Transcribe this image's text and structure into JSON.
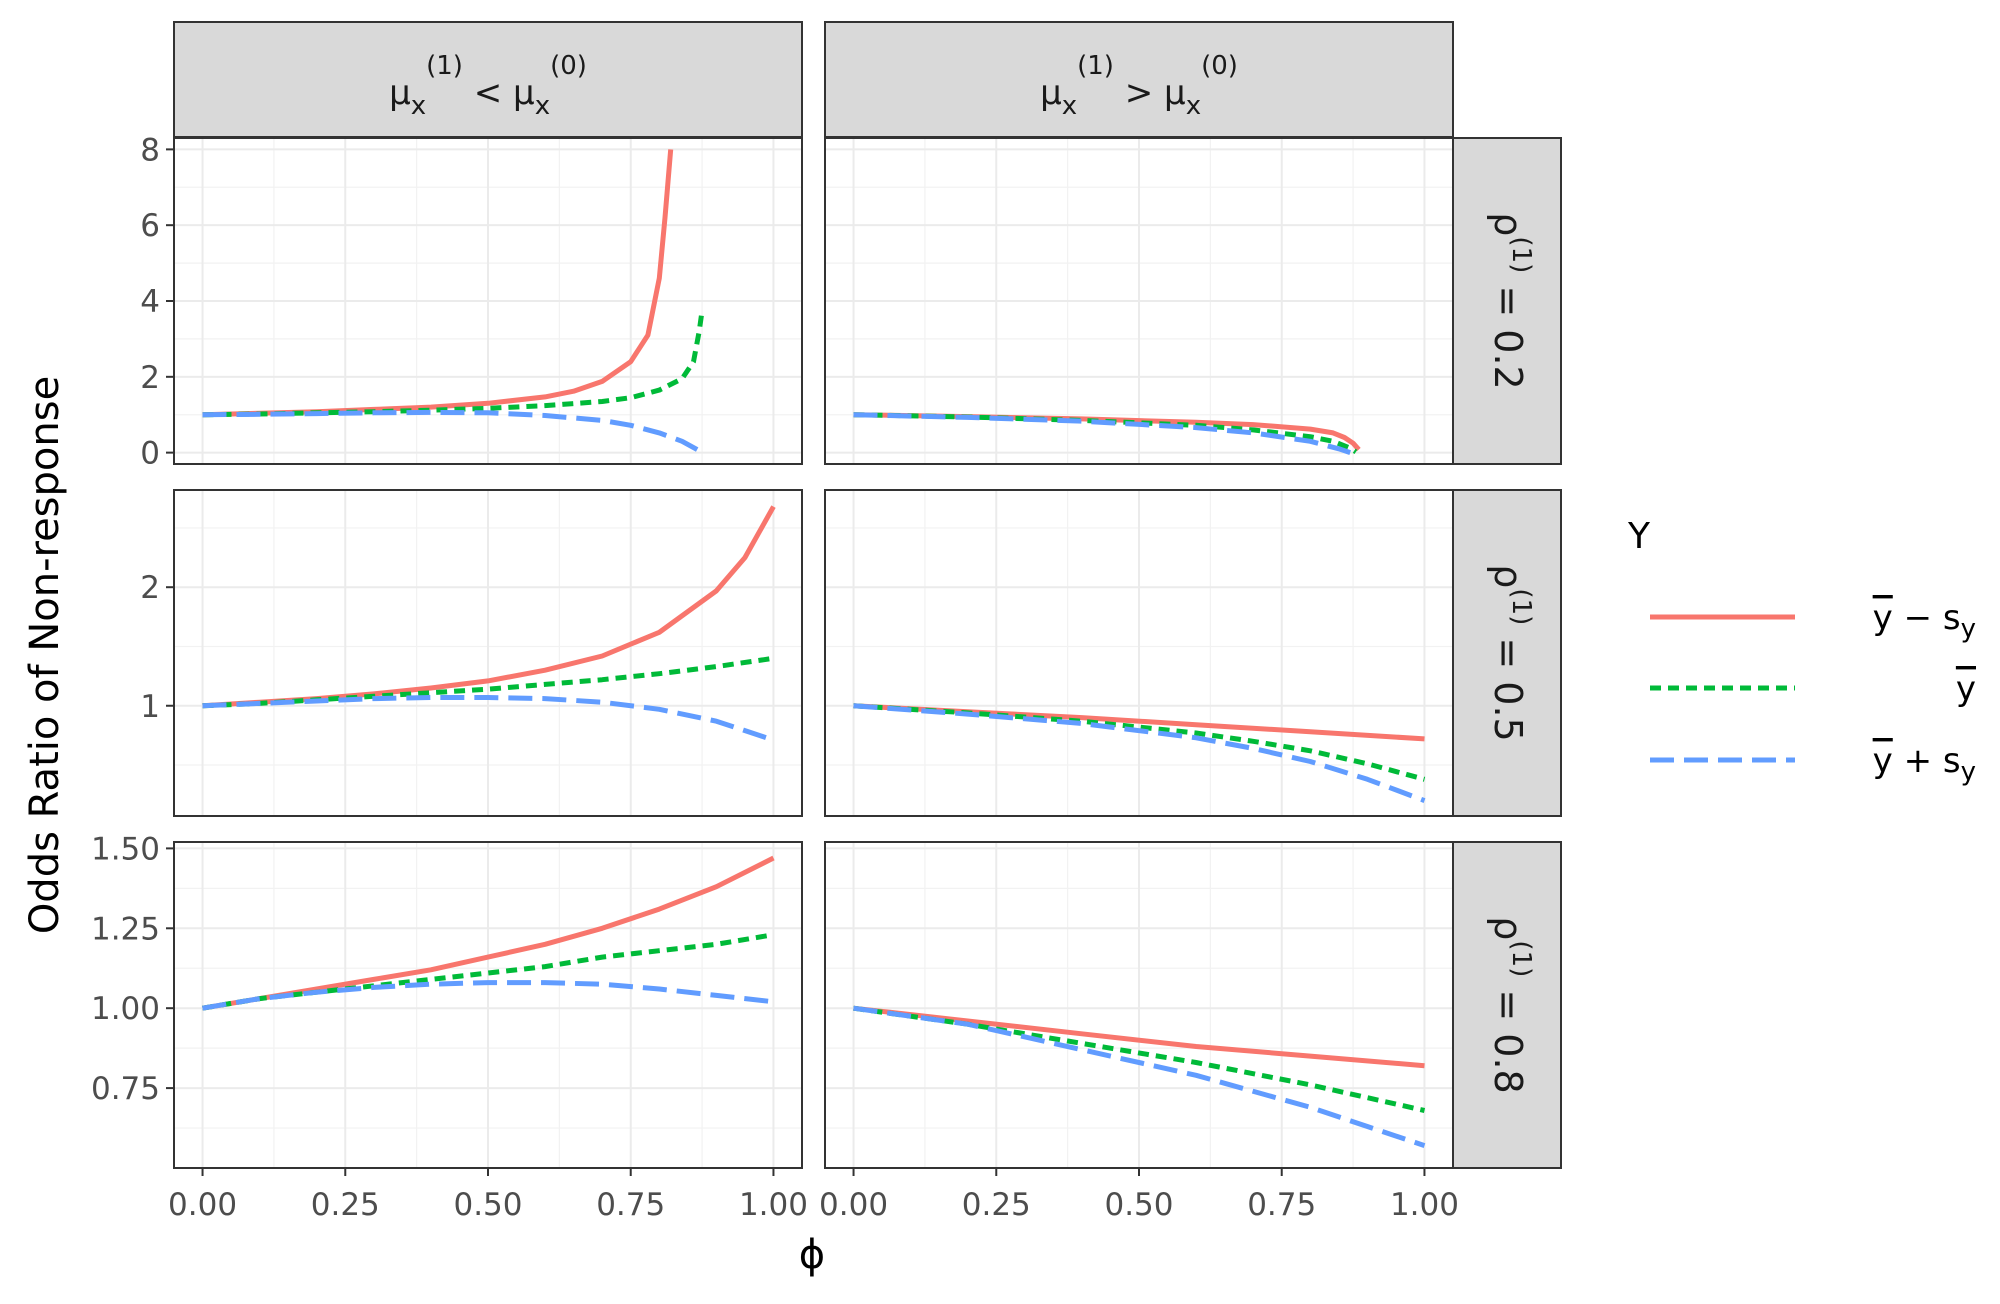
{
  "chart_data": {
    "type": "line",
    "xlabel": "ϕ",
    "ylabel": "Odds Ratio of Non-response",
    "columns": [
      {
        "label_main": "μ",
        "label_sub": "x",
        "label_sup": "(1)",
        "op": "<",
        "label2_main": "μ",
        "label2_sub": "x",
        "label2_sup": "(0)"
      },
      {
        "label_main": "μ",
        "label_sub": "x",
        "label_sup": "(1)",
        "op": ">",
        "label2_main": "μ",
        "label2_sub": "x",
        "label2_sup": "(0)"
      }
    ],
    "rows": [
      {
        "label_main": "ρ",
        "label_sup": "(1)",
        "label_rest": " = 0.2",
        "ylim": [
          -0.3,
          8.3
        ],
        "yticks": [
          0,
          2,
          4,
          6,
          8
        ],
        "ytick_labels": [
          "0",
          "2",
          "4",
          "6",
          "8"
        ]
      },
      {
        "label_main": "ρ",
        "label_sup": "(1)",
        "label_rest": " = 0.5",
        "ylim": [
          0.07,
          2.82
        ],
        "yticks": [
          1,
          2
        ],
        "ytick_labels": [
          "1",
          "2"
        ]
      },
      {
        "label_main": "ρ",
        "label_sup": "(1)",
        "label_rest": " = 0.8",
        "ylim": [
          0.5,
          1.52
        ],
        "yticks": [
          0.75,
          1.0,
          1.25,
          1.5
        ],
        "ytick_labels": [
          "0.75",
          "1.00",
          "1.25",
          "1.50"
        ]
      }
    ],
    "xlim": [
      -0.05,
      1.05
    ],
    "xticks": [
      0,
      0.25,
      0.5,
      0.75,
      1.0
    ],
    "xtick_labels": [
      "0.00",
      "0.25",
      "0.50",
      "0.75",
      "1.00"
    ],
    "legend": {
      "title": "Y",
      "entries": [
        {
          "key": "minus",
          "label_bar": "y",
          "label_op": "−",
          "label_s": "s",
          "label_sub": "y"
        },
        {
          "key": "mean",
          "label_bar": "y",
          "label_op": "",
          "label_s": "",
          "label_sub": ""
        },
        {
          "key": "plus",
          "label_bar": "y",
          "label_op": "+",
          "label_s": "s",
          "label_sub": "y"
        }
      ]
    },
    "series_styles": {
      "minus": {
        "color": "#f8766d",
        "dash": "none"
      },
      "mean": {
        "color": "#00ba38",
        "dash": "11,7"
      },
      "plus": {
        "color": "#619cff",
        "dash": "24,10"
      }
    },
    "panels": [
      {
        "row": 0,
        "col": 0,
        "series": {
          "minus": [
            [
              0,
              1.0
            ],
            [
              0.1,
              1.04
            ],
            [
              0.2,
              1.08
            ],
            [
              0.3,
              1.14
            ],
            [
              0.4,
              1.2
            ],
            [
              0.5,
              1.3
            ],
            [
              0.6,
              1.47
            ],
            [
              0.65,
              1.62
            ],
            [
              0.7,
              1.88
            ],
            [
              0.75,
              2.4
            ],
            [
              0.78,
              3.1
            ],
            [
              0.8,
              4.6
            ],
            [
              0.81,
              6.2
            ],
            [
              0.82,
              8.0
            ]
          ],
          "mean": [
            [
              0,
              1.0
            ],
            [
              0.1,
              1.02
            ],
            [
              0.2,
              1.05
            ],
            [
              0.3,
              1.08
            ],
            [
              0.4,
              1.12
            ],
            [
              0.5,
              1.17
            ],
            [
              0.6,
              1.24
            ],
            [
              0.7,
              1.35
            ],
            [
              0.75,
              1.45
            ],
            [
              0.8,
              1.65
            ],
            [
              0.84,
              1.95
            ],
            [
              0.86,
              2.4
            ],
            [
              0.87,
              3.2
            ],
            [
              0.875,
              3.75
            ]
          ],
          "plus": [
            [
              0,
              1.0
            ],
            [
              0.1,
              1.01
            ],
            [
              0.2,
              1.03
            ],
            [
              0.3,
              1.05
            ],
            [
              0.4,
              1.06
            ],
            [
              0.5,
              1.05
            ],
            [
              0.6,
              0.98
            ],
            [
              0.7,
              0.85
            ],
            [
              0.75,
              0.72
            ],
            [
              0.8,
              0.52
            ],
            [
              0.84,
              0.3
            ],
            [
              0.87,
              0.05
            ]
          ]
        }
      },
      {
        "row": 0,
        "col": 1,
        "series": {
          "minus": [
            [
              0,
              1.0
            ],
            [
              0.2,
              0.95
            ],
            [
              0.4,
              0.89
            ],
            [
              0.6,
              0.8
            ],
            [
              0.7,
              0.74
            ],
            [
              0.8,
              0.62
            ],
            [
              0.84,
              0.52
            ],
            [
              0.86,
              0.4
            ],
            [
              0.875,
              0.25
            ],
            [
              0.885,
              0.08
            ]
          ],
          "mean": [
            [
              0,
              1.0
            ],
            [
              0.2,
              0.94
            ],
            [
              0.4,
              0.85
            ],
            [
              0.6,
              0.72
            ],
            [
              0.7,
              0.6
            ],
            [
              0.8,
              0.42
            ],
            [
              0.84,
              0.3
            ],
            [
              0.87,
              0.12
            ],
            [
              0.88,
              0.02
            ]
          ],
          "plus": [
            [
              0,
              1.0
            ],
            [
              0.2,
              0.93
            ],
            [
              0.4,
              0.83
            ],
            [
              0.6,
              0.66
            ],
            [
              0.7,
              0.52
            ],
            [
              0.8,
              0.3
            ],
            [
              0.85,
              0.1
            ],
            [
              0.87,
              0.0
            ]
          ]
        }
      },
      {
        "row": 1,
        "col": 0,
        "series": {
          "minus": [
            [
              0,
              1.0
            ],
            [
              0.1,
              1.03
            ],
            [
              0.2,
              1.06
            ],
            [
              0.3,
              1.1
            ],
            [
              0.4,
              1.15
            ],
            [
              0.5,
              1.21
            ],
            [
              0.6,
              1.3
            ],
            [
              0.7,
              1.42
            ],
            [
              0.8,
              1.62
            ],
            [
              0.9,
              1.97
            ],
            [
              0.95,
              2.25
            ],
            [
              1.0,
              2.68
            ]
          ],
          "mean": [
            [
              0,
              1.0
            ],
            [
              0.1,
              1.02
            ],
            [
              0.2,
              1.05
            ],
            [
              0.3,
              1.08
            ],
            [
              0.4,
              1.11
            ],
            [
              0.5,
              1.14
            ],
            [
              0.6,
              1.18
            ],
            [
              0.7,
              1.22
            ],
            [
              0.8,
              1.27
            ],
            [
              0.9,
              1.33
            ],
            [
              1.0,
              1.4
            ]
          ],
          "plus": [
            [
              0,
              1.0
            ],
            [
              0.1,
              1.02
            ],
            [
              0.2,
              1.04
            ],
            [
              0.3,
              1.06
            ],
            [
              0.4,
              1.07
            ],
            [
              0.5,
              1.07
            ],
            [
              0.6,
              1.06
            ],
            [
              0.7,
              1.03
            ],
            [
              0.8,
              0.97
            ],
            [
              0.9,
              0.87
            ],
            [
              1.0,
              0.71
            ]
          ]
        }
      },
      {
        "row": 1,
        "col": 1,
        "series": {
          "minus": [
            [
              0,
              1.0
            ],
            [
              0.2,
              0.95
            ],
            [
              0.4,
              0.9
            ],
            [
              0.6,
              0.84
            ],
            [
              0.8,
              0.78
            ],
            [
              1.0,
              0.72
            ]
          ],
          "mean": [
            [
              0,
              1.0
            ],
            [
              0.2,
              0.94
            ],
            [
              0.4,
              0.87
            ],
            [
              0.6,
              0.77
            ],
            [
              0.7,
              0.7
            ],
            [
              0.8,
              0.62
            ],
            [
              0.9,
              0.51
            ],
            [
              1.0,
              0.38
            ]
          ],
          "plus": [
            [
              0,
              1.0
            ],
            [
              0.2,
              0.93
            ],
            [
              0.4,
              0.85
            ],
            [
              0.6,
              0.73
            ],
            [
              0.7,
              0.64
            ],
            [
              0.8,
              0.53
            ],
            [
              0.9,
              0.38
            ],
            [
              1.0,
              0.2
            ]
          ]
        }
      },
      {
        "row": 2,
        "col": 0,
        "series": {
          "minus": [
            [
              0,
              1.0
            ],
            [
              0.1,
              1.03
            ],
            [
              0.2,
              1.06
            ],
            [
              0.3,
              1.09
            ],
            [
              0.4,
              1.12
            ],
            [
              0.5,
              1.16
            ],
            [
              0.6,
              1.2
            ],
            [
              0.7,
              1.25
            ],
            [
              0.8,
              1.31
            ],
            [
              0.9,
              1.38
            ],
            [
              1.0,
              1.47
            ]
          ],
          "mean": [
            [
              0,
              1.0
            ],
            [
              0.1,
              1.03
            ],
            [
              0.2,
              1.05
            ],
            [
              0.3,
              1.07
            ],
            [
              0.4,
              1.09
            ],
            [
              0.5,
              1.11
            ],
            [
              0.6,
              1.13
            ],
            [
              0.7,
              1.16
            ],
            [
              0.8,
              1.18
            ],
            [
              0.9,
              1.2
            ],
            [
              1.0,
              1.23
            ]
          ],
          "plus": [
            [
              0,
              1.0
            ],
            [
              0.1,
              1.03
            ],
            [
              0.2,
              1.05
            ],
            [
              0.3,
              1.065
            ],
            [
              0.4,
              1.075
            ],
            [
              0.5,
              1.08
            ],
            [
              0.6,
              1.08
            ],
            [
              0.7,
              1.075
            ],
            [
              0.8,
              1.06
            ],
            [
              0.9,
              1.04
            ],
            [
              1.0,
              1.02
            ]
          ]
        }
      },
      {
        "row": 2,
        "col": 1,
        "series": {
          "minus": [
            [
              0,
              1.0
            ],
            [
              0.2,
              0.96
            ],
            [
              0.4,
              0.92
            ],
            [
              0.6,
              0.88
            ],
            [
              0.8,
              0.85
            ],
            [
              1.0,
              0.82
            ]
          ],
          "mean": [
            [
              0,
              1.0
            ],
            [
              0.2,
              0.95
            ],
            [
              0.4,
              0.89
            ],
            [
              0.6,
              0.83
            ],
            [
              0.8,
              0.76
            ],
            [
              1.0,
              0.68
            ]
          ],
          "plus": [
            [
              0,
              1.0
            ],
            [
              0.2,
              0.95
            ],
            [
              0.4,
              0.87
            ],
            [
              0.6,
              0.79
            ],
            [
              0.8,
              0.69
            ],
            [
              0.9,
              0.63
            ],
            [
              1.0,
              0.57
            ]
          ]
        }
      }
    ]
  }
}
